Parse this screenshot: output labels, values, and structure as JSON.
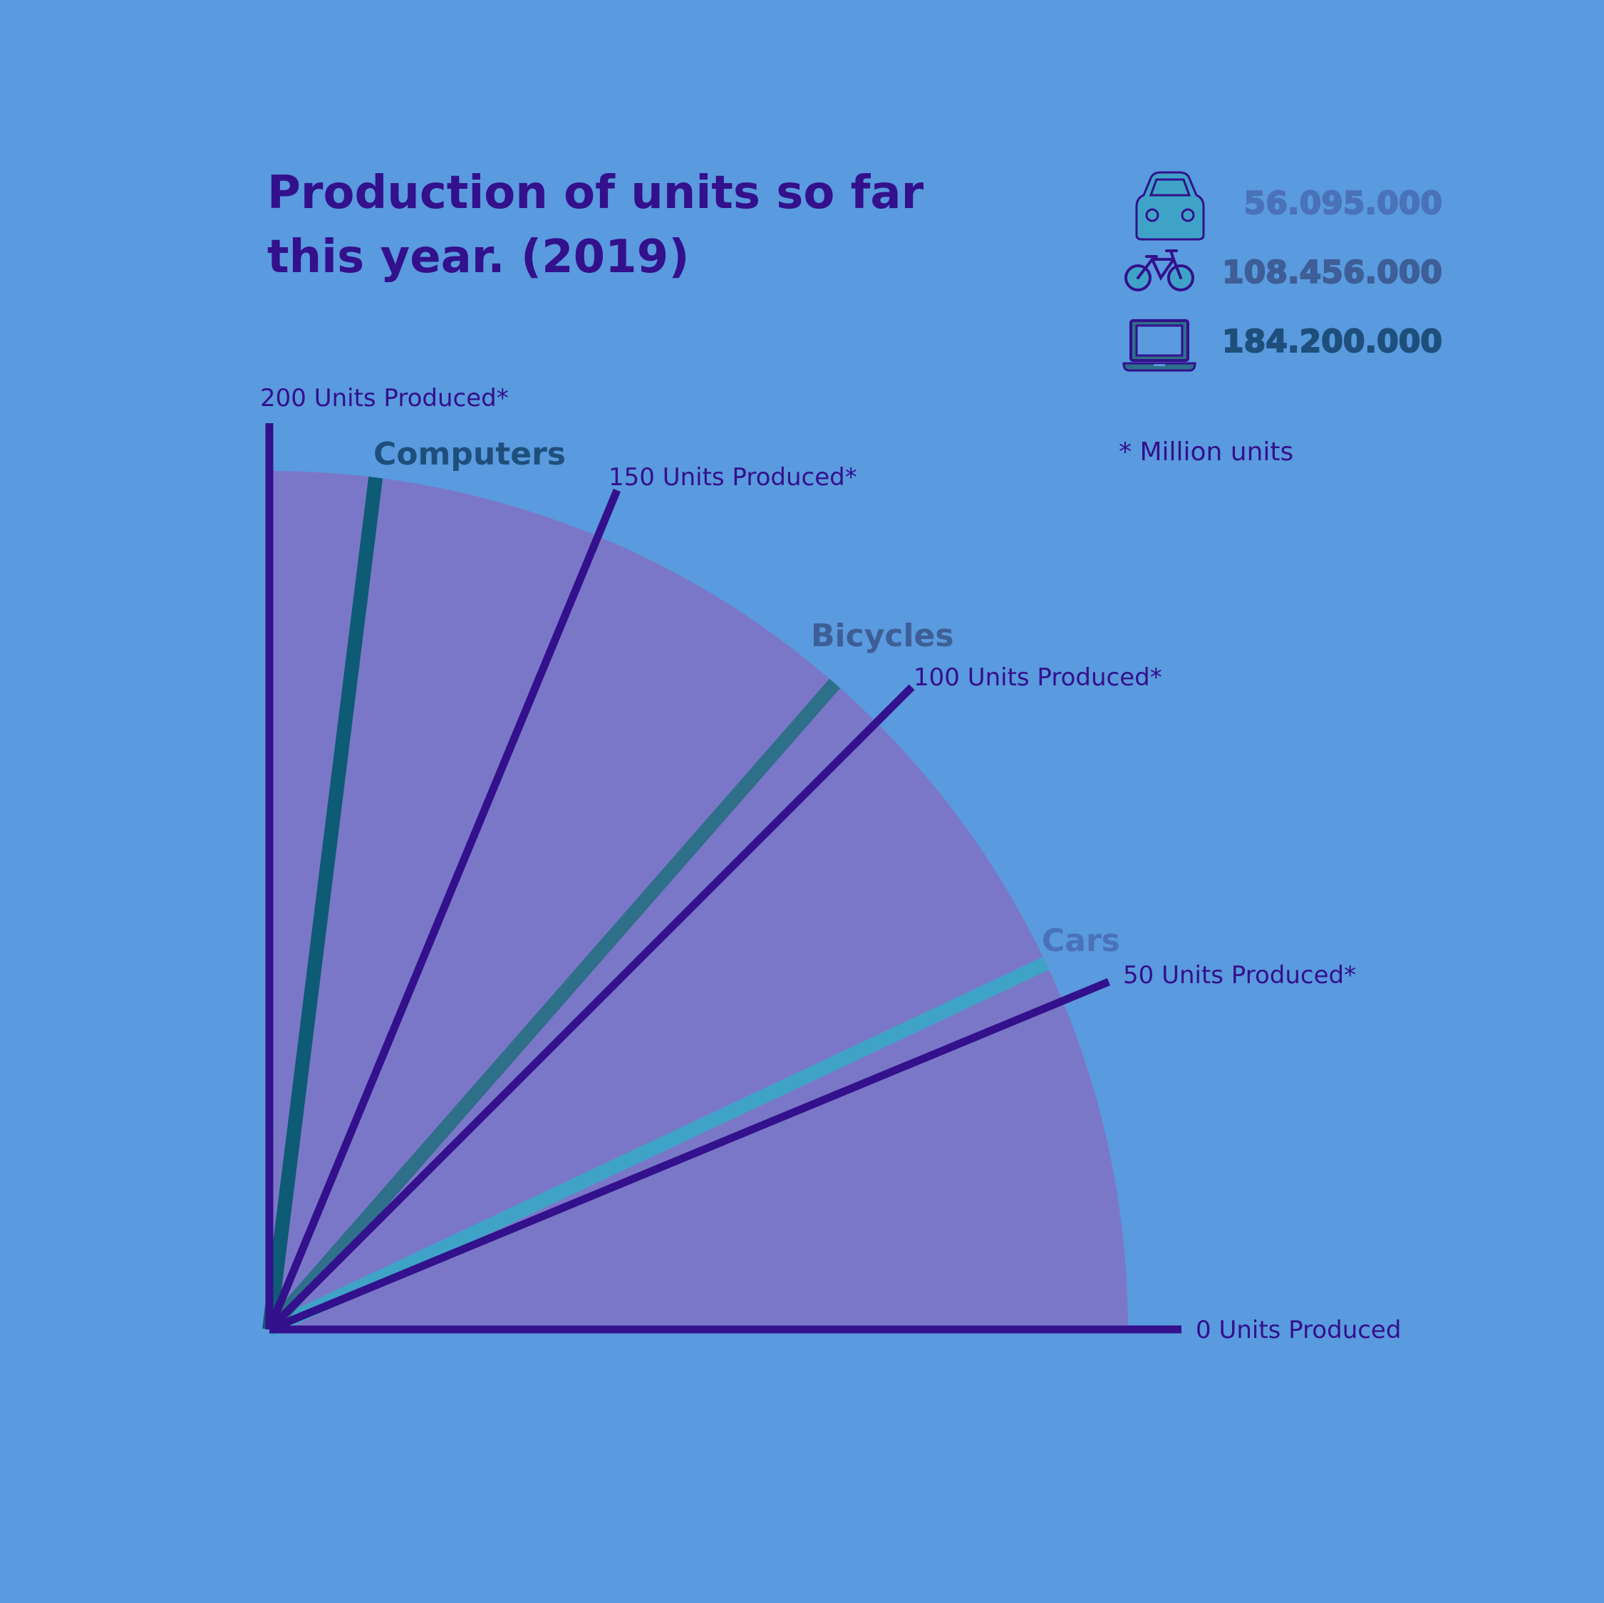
{
  "colors": {
    "background": "#5a9ade",
    "fan": "#7b77c8",
    "axis": "#33108c",
    "cars": "#3fa3c8",
    "bicycles": "#2e6f8a",
    "computers": "#0d5b74",
    "label_cars": "#4a72b8",
    "label_bicycles": "#3d5e96",
    "label_computers": "#1e4f7c"
  },
  "chart_data": {
    "type": "radial-fan",
    "title_lines": [
      "Production of units so far",
      "this year. (2019)"
    ],
    "unit_note": "* Million units",
    "axis_range": [
      0,
      200
    ],
    "ticks": [
      {
        "value": 0,
        "label": "0 Units Produced"
      },
      {
        "value": 50,
        "label": "50 Units Produced*"
      },
      {
        "value": 100,
        "label": "100 Units Produced*"
      },
      {
        "value": 150,
        "label": "150 Units Produced*"
      },
      {
        "value": 200,
        "label": "200 Units Produced*"
      }
    ],
    "series": [
      {
        "name": "Cars",
        "value": 56.095,
        "display": "56.095.000",
        "icon": "car-icon",
        "color_key": "cars",
        "label_color_key": "label_cars"
      },
      {
        "name": "Bicycles",
        "value": 108.456,
        "display": "108.456.000",
        "icon": "bicycle-icon",
        "color_key": "bicycles",
        "label_color_key": "label_bicycles"
      },
      {
        "name": "Computers",
        "value": 184.2,
        "display": "184.200.000",
        "icon": "laptop-icon",
        "color_key": "computers",
        "label_color_key": "label_computers"
      }
    ]
  }
}
